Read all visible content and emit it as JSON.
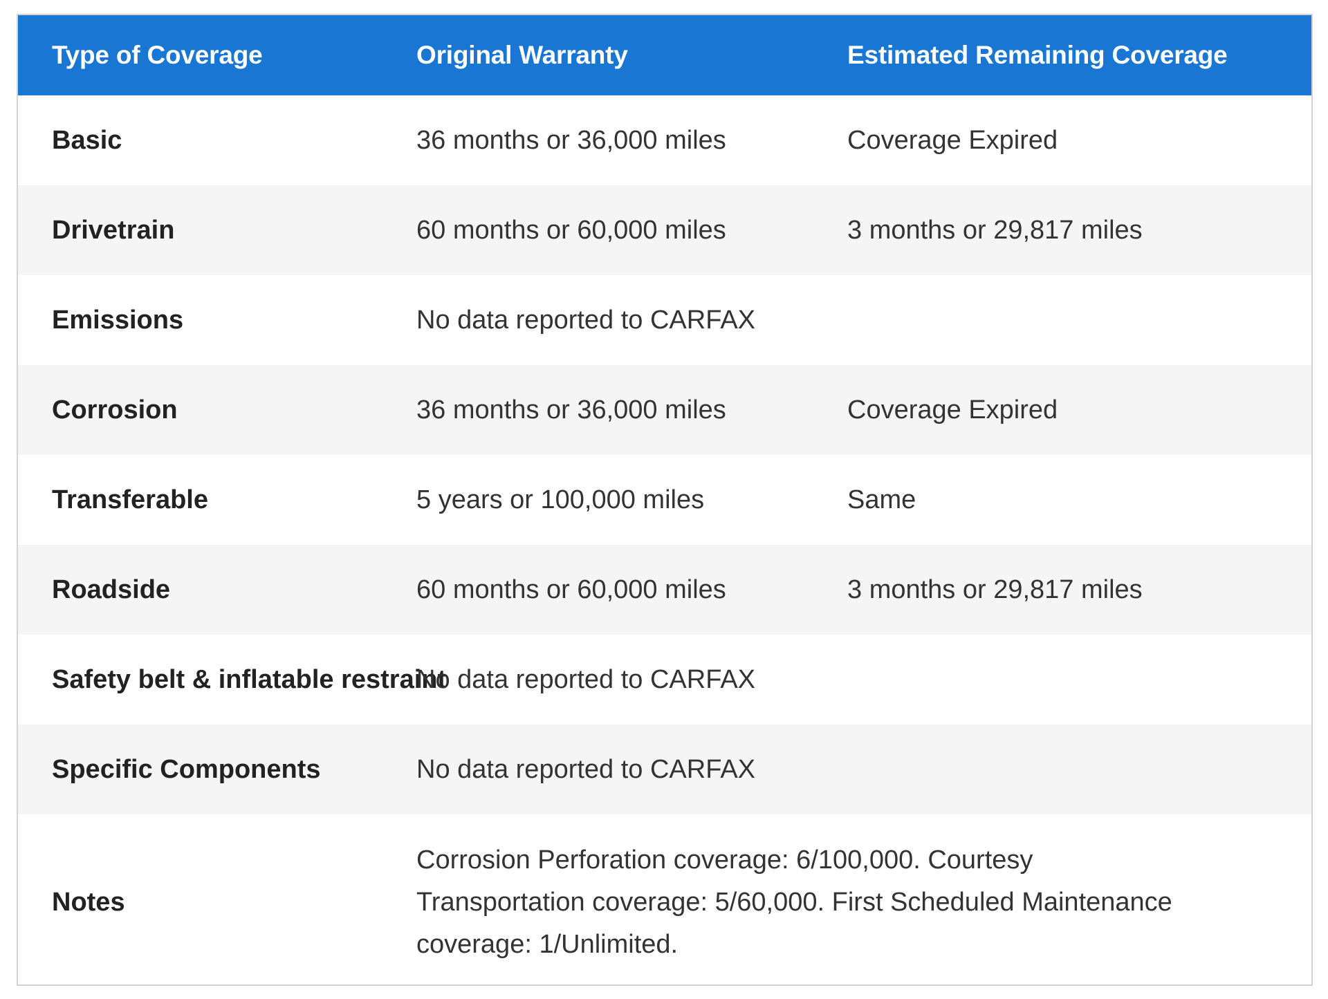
{
  "table": {
    "headers": [
      "Type of Coverage",
      "Original Warranty",
      "Estimated Remaining Coverage"
    ],
    "rows": [
      {
        "type": "Basic",
        "original": "36 months or 36,000 miles",
        "remaining": "Coverage Expired"
      },
      {
        "type": "Drivetrain",
        "original": "60 months or 60,000 miles",
        "remaining": "3 months or 29,817 miles"
      },
      {
        "type": "Emissions",
        "original": "No data reported to CARFAX",
        "remaining": ""
      },
      {
        "type": "Corrosion",
        "original": "36 months or 36,000 miles",
        "remaining": "Coverage Expired"
      },
      {
        "type": "Transferable",
        "original": "5 years or 100,000 miles",
        "remaining": "Same"
      },
      {
        "type": "Roadside",
        "original": "60 months or 60,000 miles",
        "remaining": "3 months or 29,817 miles"
      },
      {
        "type": "Safety belt & inflatable restraint",
        "original": "No data reported to CARFAX",
        "remaining": ""
      },
      {
        "type": "Specific Components",
        "original": "No data reported to CARFAX",
        "remaining": ""
      }
    ],
    "notes": {
      "label": "Notes",
      "lines": [
        "Corrosion Perforation coverage: 6/100,000. Courtesy",
        "Transportation coverage: 5/60,000. First Scheduled Maintenance",
        "coverage: 1/Unlimited."
      ]
    },
    "colors": {
      "header_bg": "#1976d2",
      "header_text": "#ffffff",
      "alt_row_bg": "#f5f5f5",
      "border": "#d3d3d3"
    }
  }
}
